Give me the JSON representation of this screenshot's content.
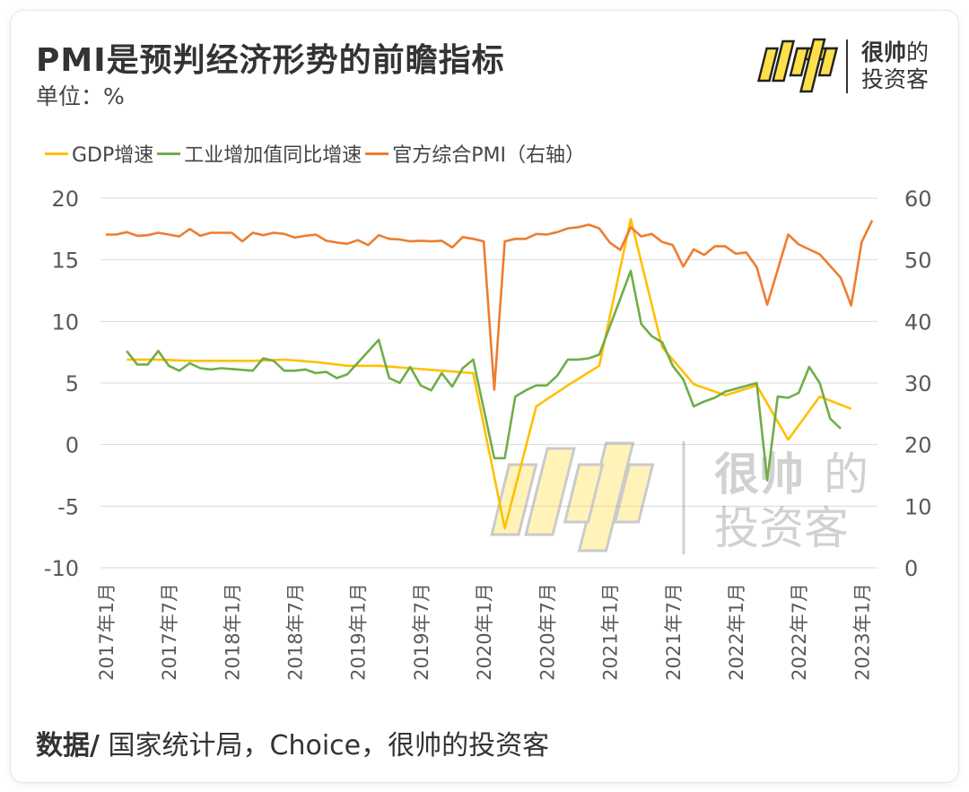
{
  "header": {
    "title": "PMI是预判经济形势的前瞻指标",
    "unit": "单位：%"
  },
  "brand": {
    "logo_text": "帅",
    "name_line1_bold": "很帅",
    "name_line1_rest": "的",
    "name_line2": "投资客"
  },
  "watermark": {
    "line1_bold": "很帅",
    "line1_rest": "的",
    "line2": "投资客"
  },
  "footer": {
    "source_label": "数据/",
    "source_text": " 国家统计局，Choice，很帅的投资客"
  },
  "colors": {
    "gdp": "#FFC000",
    "industrial": "#70AD47",
    "pmi": "#ED7D31",
    "grid": "#d9d9d9",
    "axis_text": "#595959"
  },
  "chart_data": {
    "type": "line",
    "title": "PMI是预判经济形势的前瞻指标",
    "left_axis": {
      "ylim": [
        -10,
        20
      ],
      "ticks": [
        "-10",
        "-5",
        "0",
        "5",
        "10",
        "15",
        "20"
      ]
    },
    "right_axis": {
      "ylim": [
        0,
        60
      ],
      "ticks": [
        "0",
        "10",
        "20",
        "30",
        "40",
        "50",
        "60"
      ]
    },
    "x_tick_labels": [
      "2017年1月",
      "2017年7月",
      "2018年1月",
      "2018年7月",
      "2019年1月",
      "2019年7月",
      "2020年1月",
      "2020年7月",
      "2021年1月",
      "2021年7月",
      "2022年1月",
      "2022年7月",
      "2023年1月"
    ],
    "x_start": "2017-01",
    "x_end": "2023-02",
    "grid": true,
    "legend_position": "top",
    "series": [
      {
        "name": "GDP增速",
        "axis": "left",
        "points": [
          [
            "2017-03",
            6.9
          ],
          [
            "2017-06",
            6.9
          ],
          [
            "2017-09",
            6.8
          ],
          [
            "2017-12",
            6.8
          ],
          [
            "2018-03",
            6.8
          ],
          [
            "2018-06",
            6.9
          ],
          [
            "2018-09",
            6.7
          ],
          [
            "2018-12",
            6.4
          ],
          [
            "2019-03",
            6.4
          ],
          [
            "2019-06",
            6.2
          ],
          [
            "2019-09",
            6.0
          ],
          [
            "2019-12",
            5.8
          ],
          [
            "2020-03",
            -6.8
          ],
          [
            "2020-06",
            3.1
          ],
          [
            "2020-09",
            4.8
          ],
          [
            "2020-12",
            6.4
          ],
          [
            "2021-03",
            18.3
          ],
          [
            "2021-06",
            7.9
          ],
          [
            "2021-09",
            4.9
          ],
          [
            "2021-12",
            4.0
          ],
          [
            "2022-03",
            4.8
          ],
          [
            "2022-06",
            0.4
          ],
          [
            "2022-09",
            3.9
          ],
          [
            "2022-12",
            2.9
          ]
        ]
      },
      {
        "name": "工业增加值同比增速",
        "axis": "left",
        "points": [
          [
            "2017-03",
            7.6
          ],
          [
            "2017-04",
            6.5
          ],
          [
            "2017-05",
            6.5
          ],
          [
            "2017-06",
            7.6
          ],
          [
            "2017-07",
            6.4
          ],
          [
            "2017-08",
            6.0
          ],
          [
            "2017-09",
            6.6
          ],
          [
            "2017-10",
            6.2
          ],
          [
            "2017-11",
            6.1
          ],
          [
            "2017-12",
            6.2
          ],
          [
            "2018-03",
            6.0
          ],
          [
            "2018-04",
            7.0
          ],
          [
            "2018-05",
            6.8
          ],
          [
            "2018-06",
            6.0
          ],
          [
            "2018-07",
            6.0
          ],
          [
            "2018-08",
            6.1
          ],
          [
            "2018-09",
            5.8
          ],
          [
            "2018-10",
            5.9
          ],
          [
            "2018-11",
            5.4
          ],
          [
            "2018-12",
            5.7
          ],
          [
            "2019-03",
            8.5
          ],
          [
            "2019-04",
            5.4
          ],
          [
            "2019-05",
            5.0
          ],
          [
            "2019-06",
            6.3
          ],
          [
            "2019-07",
            4.8
          ],
          [
            "2019-08",
            4.4
          ],
          [
            "2019-09",
            5.8
          ],
          [
            "2019-10",
            4.7
          ],
          [
            "2019-11",
            6.2
          ],
          [
            "2019-12",
            6.9
          ],
          [
            "2020-02",
            -1.1
          ],
          [
            "2020-03",
            -1.1
          ],
          [
            "2020-04",
            3.9
          ],
          [
            "2020-05",
            4.4
          ],
          [
            "2020-06",
            4.8
          ],
          [
            "2020-07",
            4.8
          ],
          [
            "2020-08",
            5.6
          ],
          [
            "2020-09",
            6.9
          ],
          [
            "2020-10",
            6.9
          ],
          [
            "2020-11",
            7.0
          ],
          [
            "2020-12",
            7.3
          ],
          [
            "2021-03",
            14.1
          ],
          [
            "2021-04",
            9.8
          ],
          [
            "2021-05",
            8.8
          ],
          [
            "2021-06",
            8.3
          ],
          [
            "2021-07",
            6.4
          ],
          [
            "2021-08",
            5.3
          ],
          [
            "2021-09",
            3.1
          ],
          [
            "2021-10",
            3.5
          ],
          [
            "2021-11",
            3.8
          ],
          [
            "2021-12",
            4.3
          ],
          [
            "2022-03",
            5.0
          ],
          [
            "2022-04",
            -2.9
          ],
          [
            "2022-05",
            3.9
          ],
          [
            "2022-06",
            3.8
          ],
          [
            "2022-07",
            4.2
          ],
          [
            "2022-08",
            6.3
          ],
          [
            "2022-09",
            5.0
          ],
          [
            "2022-10",
            2.1
          ],
          [
            "2022-11",
            1.3
          ]
        ]
      },
      {
        "name": "官方综合PMI（右轴）",
        "axis": "right",
        "points": [
          [
            "2017-01",
            54.1
          ],
          [
            "2017-02",
            54.1
          ],
          [
            "2017-03",
            54.5
          ],
          [
            "2017-04",
            53.9
          ],
          [
            "2017-05",
            54.0
          ],
          [
            "2017-06",
            54.4
          ],
          [
            "2017-07",
            54.1
          ],
          [
            "2017-08",
            53.8
          ],
          [
            "2017-09",
            55.0
          ],
          [
            "2017-10",
            53.9
          ],
          [
            "2017-11",
            54.4
          ],
          [
            "2017-12",
            54.4
          ],
          [
            "2018-01",
            54.4
          ],
          [
            "2018-02",
            53.0
          ],
          [
            "2018-03",
            54.4
          ],
          [
            "2018-04",
            54.0
          ],
          [
            "2018-05",
            54.4
          ],
          [
            "2018-06",
            54.2
          ],
          [
            "2018-07",
            53.6
          ],
          [
            "2018-08",
            53.9
          ],
          [
            "2018-09",
            54.1
          ],
          [
            "2018-10",
            53.1
          ],
          [
            "2018-11",
            52.8
          ],
          [
            "2018-12",
            52.6
          ],
          [
            "2019-01",
            53.2
          ],
          [
            "2019-02",
            52.4
          ],
          [
            "2019-03",
            54.0
          ],
          [
            "2019-04",
            53.4
          ],
          [
            "2019-05",
            53.3
          ],
          [
            "2019-06",
            53.0
          ],
          [
            "2019-07",
            53.1
          ],
          [
            "2019-08",
            53.0
          ],
          [
            "2019-09",
            53.1
          ],
          [
            "2019-10",
            52.0
          ],
          [
            "2019-11",
            53.7
          ],
          [
            "2019-12",
            53.4
          ],
          [
            "2020-01",
            53.0
          ],
          [
            "2020-02",
            28.9
          ],
          [
            "2020-03",
            53.0
          ],
          [
            "2020-04",
            53.4
          ],
          [
            "2020-05",
            53.4
          ],
          [
            "2020-06",
            54.2
          ],
          [
            "2020-07",
            54.1
          ],
          [
            "2020-08",
            54.5
          ],
          [
            "2020-09",
            55.1
          ],
          [
            "2020-10",
            55.3
          ],
          [
            "2020-11",
            55.7
          ],
          [
            "2020-12",
            55.1
          ],
          [
            "2021-01",
            52.8
          ],
          [
            "2021-02",
            51.6
          ],
          [
            "2021-03",
            55.3
          ],
          [
            "2021-04",
            53.8
          ],
          [
            "2021-05",
            54.2
          ],
          [
            "2021-06",
            52.9
          ],
          [
            "2021-07",
            52.4
          ],
          [
            "2021-08",
            48.9
          ],
          [
            "2021-09",
            51.7
          ],
          [
            "2021-10",
            50.8
          ],
          [
            "2021-11",
            52.2
          ],
          [
            "2021-12",
            52.2
          ],
          [
            "2022-01",
            51.0
          ],
          [
            "2022-02",
            51.2
          ],
          [
            "2022-03",
            48.8
          ],
          [
            "2022-04",
            42.7
          ],
          [
            "2022-05",
            48.4
          ],
          [
            "2022-06",
            54.1
          ],
          [
            "2022-07",
            52.5
          ],
          [
            "2022-08",
            51.7
          ],
          [
            "2022-09",
            50.9
          ],
          [
            "2022-10",
            49.0
          ],
          [
            "2022-11",
            47.1
          ],
          [
            "2022-12",
            42.6
          ],
          [
            "2023-01",
            52.9
          ],
          [
            "2023-02",
            56.4
          ]
        ]
      }
    ]
  }
}
